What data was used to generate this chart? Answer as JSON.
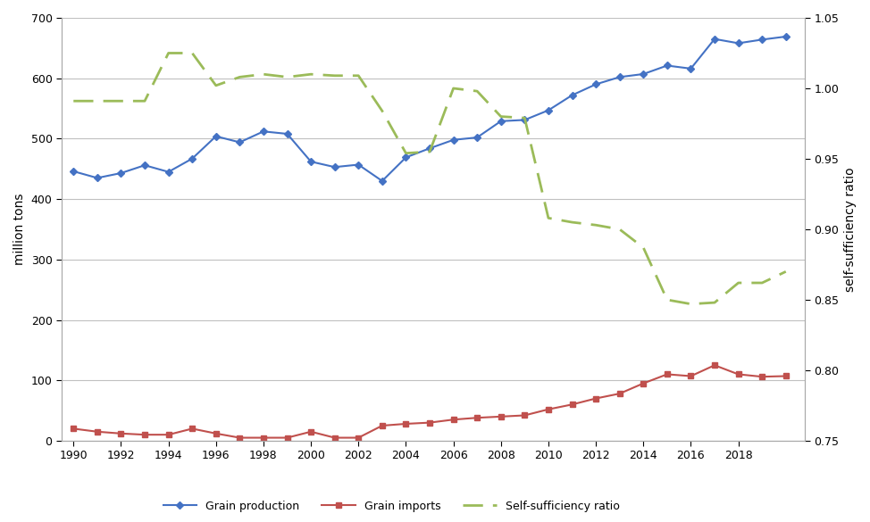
{
  "years": [
    1990,
    1991,
    1992,
    1993,
    1994,
    1995,
    1996,
    1997,
    1998,
    1999,
    2000,
    2001,
    2002,
    2003,
    2004,
    2005,
    2006,
    2007,
    2008,
    2009,
    2010,
    2011,
    2012,
    2013,
    2014,
    2015,
    2016,
    2017,
    2018,
    2019,
    2020
  ],
  "grain_production": [
    446,
    435,
    443,
    456,
    445,
    467,
    504,
    494,
    512,
    508,
    462,
    453,
    457,
    430,
    469,
    484,
    498,
    502,
    529,
    531,
    547,
    572,
    590,
    602,
    607,
    621,
    616,
    665,
    658,
    664,
    669
  ],
  "grain_imports": [
    20,
    15,
    12,
    10,
    10,
    20,
    12,
    5,
    5,
    5,
    15,
    5,
    5,
    25,
    28,
    30,
    35,
    38,
    40,
    42,
    52,
    60,
    70,
    78,
    95,
    110,
    107,
    125,
    110,
    106,
    107
  ],
  "self_sufficiency": [
    0.991,
    0.991,
    0.991,
    0.991,
    1.025,
    1.025,
    1.002,
    1.008,
    1.01,
    1.008,
    1.01,
    1.009,
    1.009,
    0.984,
    0.954,
    0.955,
    1.0,
    0.998,
    0.98,
    0.979,
    0.908,
    0.905,
    0.903,
    0.9,
    0.887,
    0.85,
    0.847,
    0.848,
    0.862,
    0.862,
    0.87
  ],
  "grain_prod_color": "#4472C4",
  "grain_import_color": "#C0504D",
  "self_suff_color": "#9BBB59",
  "ylabel_left": "million tons",
  "ylabel_right": "self-sufficiency ratio",
  "ylim_left": [
    0,
    700
  ],
  "ylim_right": [
    0.75,
    1.05
  ],
  "yticks_left": [
    0,
    100,
    200,
    300,
    400,
    500,
    600,
    700
  ],
  "yticks_right": [
    0.75,
    0.8,
    0.85,
    0.9,
    0.95,
    1.0,
    1.05
  ],
  "xticks": [
    1990,
    1992,
    1994,
    1996,
    1998,
    2000,
    2002,
    2004,
    2006,
    2008,
    2010,
    2012,
    2014,
    2016,
    2018
  ],
  "xlim": [
    1989.5,
    2020.8
  ],
  "legend_labels": [
    "Grain production",
    "Grain imports",
    "Self-sufficiency ratio"
  ],
  "background_color": "#ffffff",
  "grid_color": "#c0c0c0"
}
